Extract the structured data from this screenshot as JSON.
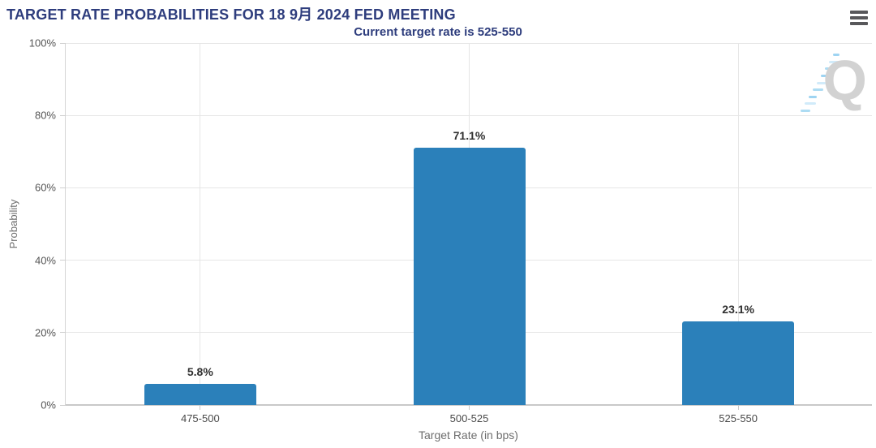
{
  "header": {
    "title": "TARGET RATE PROBABILITIES FOR 18 9月 2024 FED MEETING",
    "subtitle": "Current target rate is 525-550"
  },
  "toolbar": {
    "menu_icon": "hamburger-icon"
  },
  "watermark": {
    "letter": "Q"
  },
  "chart_data": {
    "type": "bar",
    "title": "TARGET RATE PROBABILITIES FOR 18 9月 2024 FED MEETING",
    "subtitle": "Current target rate is 525-550",
    "categories": [
      "475-500",
      "500-525",
      "525-550"
    ],
    "values": [
      5.8,
      71.1,
      23.1
    ],
    "value_labels": [
      "5.8%",
      "71.1%",
      "23.1%"
    ],
    "xlabel": "Target Rate (in bps)",
    "ylabel": "Probability",
    "ylim": [
      0,
      100
    ],
    "ytick_step": 20,
    "ytick_labels": [
      "0%",
      "20%",
      "40%",
      "60%",
      "80%",
      "100%"
    ],
    "grid": true,
    "legend": "none",
    "bar_color": "#2b80ba",
    "title_color": "#2e3d7d",
    "grid_color": "#e6e6e6",
    "axis_label_color": "#4a4a4a",
    "axis_title_color": "#6e6e6e"
  }
}
